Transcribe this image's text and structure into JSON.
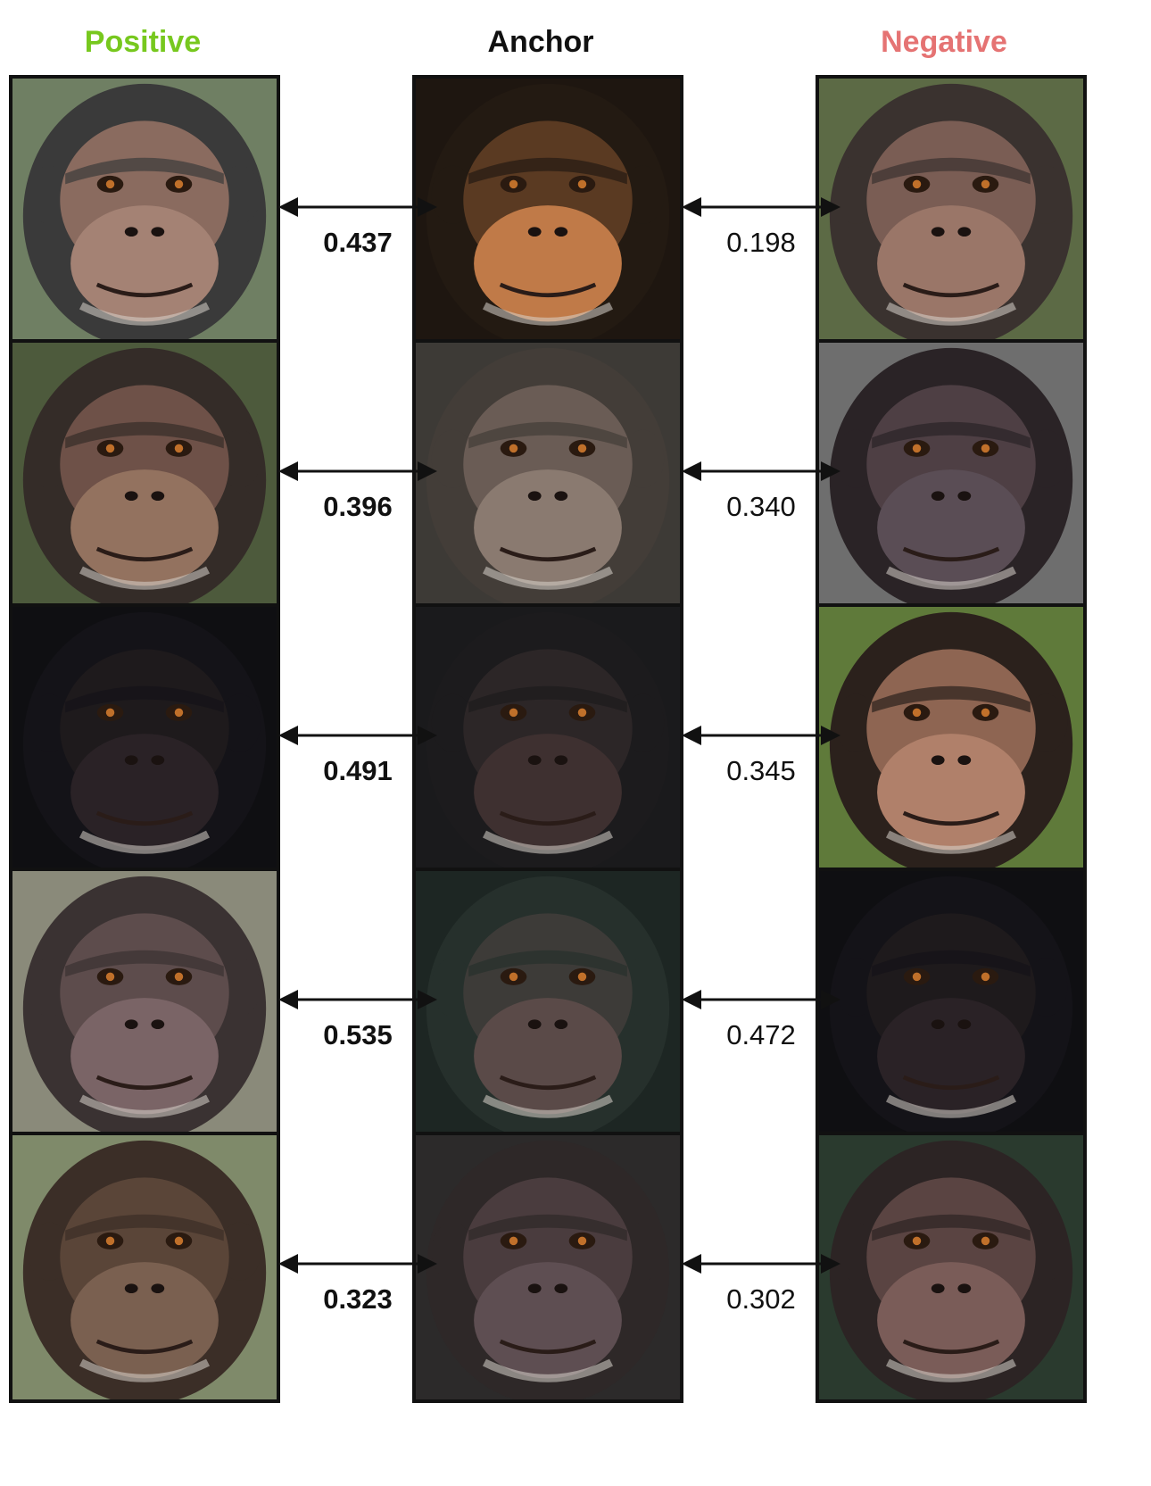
{
  "headers": {
    "positive": "Positive",
    "anchor": "Anchor",
    "negative": "Negative"
  },
  "colors": {
    "positive": "#77c81e",
    "anchor": "#111111",
    "negative": "#e57373"
  },
  "rows": [
    {
      "positive_score": "0.437",
      "negative_score": "0.198",
      "positive_img": {
        "bg": "#6f7f63",
        "fur": "#3a3a3a",
        "face": "#8a6b5f",
        "muzzle": "#a48274"
      },
      "anchor_img": {
        "bg": "#1e1610",
        "fur": "#231a12",
        "face": "#5a3a22",
        "muzzle": "#c07a48"
      },
      "negative_img": {
        "bg": "#5c6a45",
        "fur": "#3a322f",
        "face": "#7a5d54",
        "muzzle": "#9a7668"
      }
    },
    {
      "positive_score": "0.396",
      "negative_score": "0.340",
      "positive_img": {
        "bg": "#4d5a3c",
        "fur": "#342c28",
        "face": "#6e5148",
        "muzzle": "#93725f"
      },
      "anchor_img": {
        "bg": "#3d3a36",
        "fur": "#433d38",
        "face": "#6a5c55",
        "muzzle": "#8a7a70"
      },
      "negative_img": {
        "bg": "#6e6e6e",
        "fur": "#2a2326",
        "face": "#4e3f44",
        "muzzle": "#5a4d55"
      }
    },
    {
      "positive_score": "0.491",
      "negative_score": "0.345",
      "positive_img": {
        "bg": "#0f0f12",
        "fur": "#141318",
        "face": "#1e1a1c",
        "muzzle": "#2a2226"
      },
      "anchor_img": {
        "bg": "#1a1a1c",
        "fur": "#1c1b1d",
        "face": "#2c2627",
        "muzzle": "#3e3030"
      },
      "negative_img": {
        "bg": "#5f7a3a",
        "fur": "#2b211c",
        "face": "#8e6552",
        "muzzle": "#b0806a"
      }
    },
    {
      "positive_score": "0.535",
      "negative_score": "0.472",
      "positive_img": {
        "bg": "#8a8a7a",
        "fur": "#3a3232",
        "face": "#5d4c4c",
        "muzzle": "#7a6466"
      },
      "anchor_img": {
        "bg": "#1d2623",
        "fur": "#26302c",
        "face": "#3d3b38",
        "muzzle": "#5a4a48"
      },
      "negative_img": {
        "bg": "#0f0f12",
        "fur": "#141318",
        "face": "#1e1a1c",
        "muzzle": "#2a2226"
      }
    },
    {
      "positive_score": "0.323",
      "negative_score": "0.302",
      "positive_img": {
        "bg": "#7f8a6a",
        "fur": "#3b2e27",
        "face": "#5a4538",
        "muzzle": "#7a6050"
      },
      "anchor_img": {
        "bg": "#2c2a2a",
        "fur": "#2e2828",
        "face": "#4a3c3e",
        "muzzle": "#5e4e52"
      },
      "negative_img": {
        "bg": "#2a3a2e",
        "fur": "#2c2424",
        "face": "#5a4442",
        "muzzle": "#7a5c58"
      }
    }
  ]
}
